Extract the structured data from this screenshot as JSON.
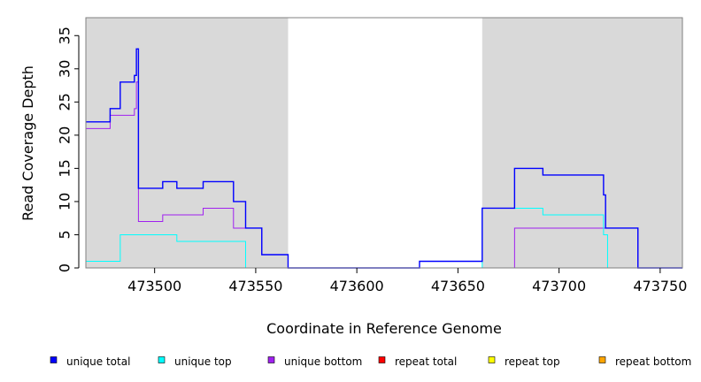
{
  "chart_data": {
    "type": "line",
    "step": true,
    "xlabel": "Coordinate in Reference Genome",
    "ylabel": "Read Coverage Depth",
    "xlim": [
      473466,
      473761
    ],
    "ylim": [
      0,
      37.7
    ],
    "x_ticks": [
      473500,
      473550,
      473600,
      473650,
      473700,
      473750
    ],
    "y_ticks": [
      0,
      5,
      10,
      15,
      20,
      25,
      30,
      35
    ],
    "shaded_regions": [
      [
        473466,
        473566
      ],
      [
        473662,
        473761
      ]
    ],
    "shaded_color": "#d9d9d9",
    "grid": false,
    "legend_position": "bottom",
    "series": [
      {
        "name": "unique total",
        "color": "#0000ff",
        "points": [
          [
            473466,
            22
          ],
          [
            473478,
            24
          ],
          [
            473483,
            28
          ],
          [
            473490,
            29
          ],
          [
            473491,
            33
          ],
          [
            473492,
            12
          ],
          [
            473504,
            13
          ],
          [
            473511,
            12
          ],
          [
            473524,
            13
          ],
          [
            473539,
            10
          ],
          [
            473545,
            6
          ],
          [
            473553,
            2
          ],
          [
            473566,
            0
          ],
          [
            473631,
            1
          ],
          [
            473662,
            9
          ],
          [
            473678,
            15
          ],
          [
            473692,
            14
          ],
          [
            473722,
            11
          ],
          [
            473723,
            6
          ],
          [
            473739,
            0
          ],
          [
            473761,
            0
          ]
        ]
      },
      {
        "name": "unique top",
        "color": "#00ffff",
        "points": [
          [
            473466,
            1
          ],
          [
            473483,
            5
          ],
          [
            473511,
            4
          ],
          [
            473545,
            0
          ],
          [
            473662,
            9
          ],
          [
            473692,
            8
          ],
          [
            473722,
            5
          ],
          [
            473724,
            0
          ],
          [
            473761,
            0
          ]
        ]
      },
      {
        "name": "unique bottom",
        "color": "#a020f0",
        "points": [
          [
            473466,
            21
          ],
          [
            473478,
            23
          ],
          [
            473490,
            24
          ],
          [
            473491,
            28
          ],
          [
            473492,
            7
          ],
          [
            473504,
            8
          ],
          [
            473524,
            9
          ],
          [
            473539,
            6
          ],
          [
            473553,
            2
          ],
          [
            473566,
            0
          ],
          [
            473678,
            6
          ],
          [
            473722,
            6
          ],
          [
            473739,
            0
          ],
          [
            473761,
            0
          ]
        ]
      },
      {
        "name": "repeat total",
        "color": "#ff0000",
        "points": [
          [
            473466,
            0
          ],
          [
            473761,
            0
          ]
        ]
      },
      {
        "name": "repeat top",
        "color": "#ffff00",
        "points": [
          [
            473466,
            0
          ],
          [
            473761,
            0
          ]
        ]
      },
      {
        "name": "repeat bottom",
        "color": "#ffa500",
        "points": [
          [
            473466,
            0
          ],
          [
            473761,
            0
          ]
        ]
      }
    ]
  }
}
